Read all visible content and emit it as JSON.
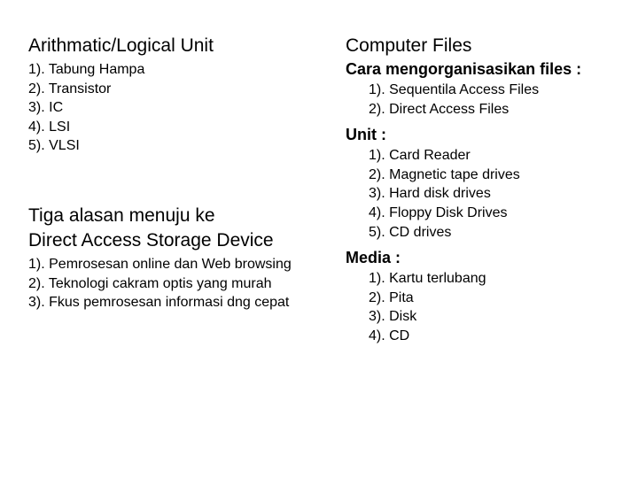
{
  "left": {
    "section1": {
      "title": "Arithmatic/Logical Unit",
      "items": [
        "1). Tabung Hampa",
        "2). Transistor",
        "3). IC",
        "4). LSI",
        "5). VLSI"
      ]
    },
    "section2": {
      "title_line1": "Tiga alasan menuju ke",
      "title_line2": "Direct Access Storage Device",
      "items": [
        "1). Pemrosesan online dan Web browsing",
        "2). Teknologi cakram optis yang murah",
        "3). Fkus pemrosesan informasi dng cepat"
      ]
    }
  },
  "right": {
    "title": "Computer Files",
    "section1": {
      "title": "Cara mengorganisasikan files :",
      "items": [
        "1). Sequentila Access Files",
        "2). Direct Access Files"
      ]
    },
    "section2": {
      "title": "Unit :",
      "items": [
        "1). Card Reader",
        "2). Magnetic tape drives",
        "3). Hard disk drives",
        "4). Floppy Disk Drives",
        "5). CD drives"
      ]
    },
    "section3": {
      "title": "Media :",
      "items": [
        "1). Kartu terlubang",
        "2). Pita",
        "3). Disk",
        "4). CD"
      ]
    }
  }
}
